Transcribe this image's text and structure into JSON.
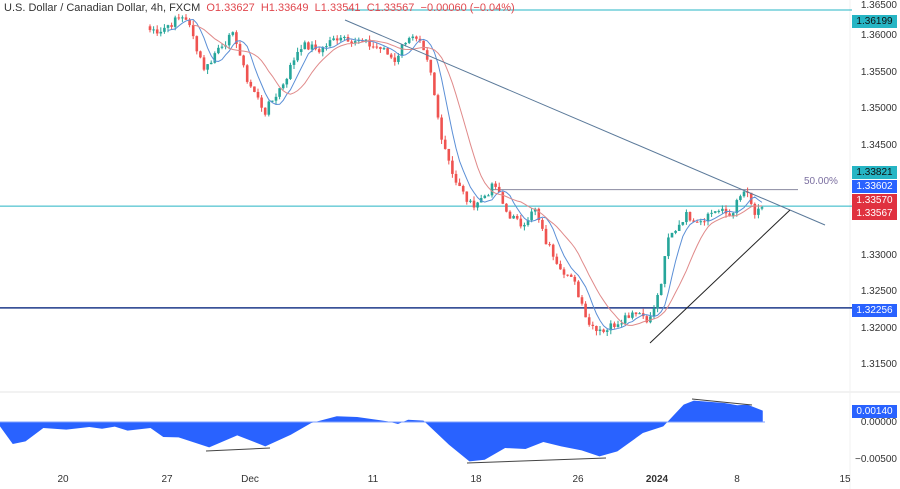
{
  "header": {
    "symbol": "U.S. Dollar / Canadian Dollar, 4h, FXCM",
    "open": "O1.33627",
    "high": "H1.33649",
    "low": "L1.33541",
    "close": "C1.33567",
    "change": "−0.00060 (−0.04%)"
  },
  "colors": {
    "up": "#26a69a",
    "down": "#ef5350",
    "fast_ma": "#5b8fd6",
    "slow_ma": "#e08a8a",
    "oscillator": "#2962ff",
    "trendline": "#5b7a9a",
    "cyan_level": "#26b5c4",
    "support_level": "#1e3a8a"
  },
  "chart_data": {
    "type": "candlestick",
    "x_tick_labels": [
      "20",
      "27",
      "Dec",
      "11",
      "18",
      "26",
      "2024",
      "8",
      "15"
    ],
    "y_tick_labels": [
      "1.36500",
      "1.36000",
      "1.35500",
      "1.35000",
      "1.34500",
      "1.33000",
      "1.32500",
      "1.32000",
      "1.31500"
    ],
    "ylim": [
      1.3135,
      1.365
    ],
    "approx_closes": [
      1.35934,
      1.36132,
      1.35404,
      1.35735,
      1.35868,
      1.35338,
      1.34848,
      1.35272,
      1.35735,
      1.35669,
      1.35868,
      1.35775,
      1.35695,
      1.35537,
      1.35868,
      1.35735,
      1.35404,
      1.3461,
      1.33948,
      1.33617,
      1.33683,
      1.33882,
      1.33551,
      1.33352,
      1.33551,
      1.33154,
      1.32823,
      1.32559,
      1.3203,
      1.31964,
      1.32096,
      1.32229,
      1.32096,
      1.32493,
      1.33154,
      1.33485,
      1.33419,
      1.33551,
      1.33485,
      1.33816,
      1.33485,
      1.33567
    ],
    "levels": [
      {
        "price": 1.36199,
        "label": "1.36199"
      },
      {
        "price": 1.33602,
        "label": "1.33602"
      },
      {
        "price": 1.32256,
        "label": "1.32256"
      }
    ],
    "fib_label": "50.00%",
    "fib_price": 1.33821,
    "price_badges": {
      "fib": "1.33821",
      "level": "1.33602",
      "ma": "1.33570",
      "last": "1.33567"
    },
    "oscillator": {
      "y_tick_labels": [
        "0.00000",
        "−0.00500"
      ],
      "current_label": "0.00140",
      "values": [
        -0.00057,
        -0.0029,
        -0.00255,
        -0.00079,
        -0.001,
        -0.00066,
        -0.00088,
        -0.00061,
        -0.00114,
        -0.00079,
        -0.00198,
        -0.00202,
        -0.00334,
        -0.00176,
        -0.0032,
        -0.00167,
        -0.00013,
        0.00075,
        0.00066,
        9e-05,
        -0.00026,
        0.0003,
        0.00018,
        -0.00299,
        -0.00518,
        -0.00496,
        -0.00342,
        -0.00356,
        -0.00263,
        -0.0032,
        -0.00373,
        -0.00453,
        -0.00386,
        -0.00145,
        -0.00057,
        0.00228,
        0.00281,
        0.0025,
        0.0022,
        0.00228,
        0.00149
      ]
    }
  }
}
